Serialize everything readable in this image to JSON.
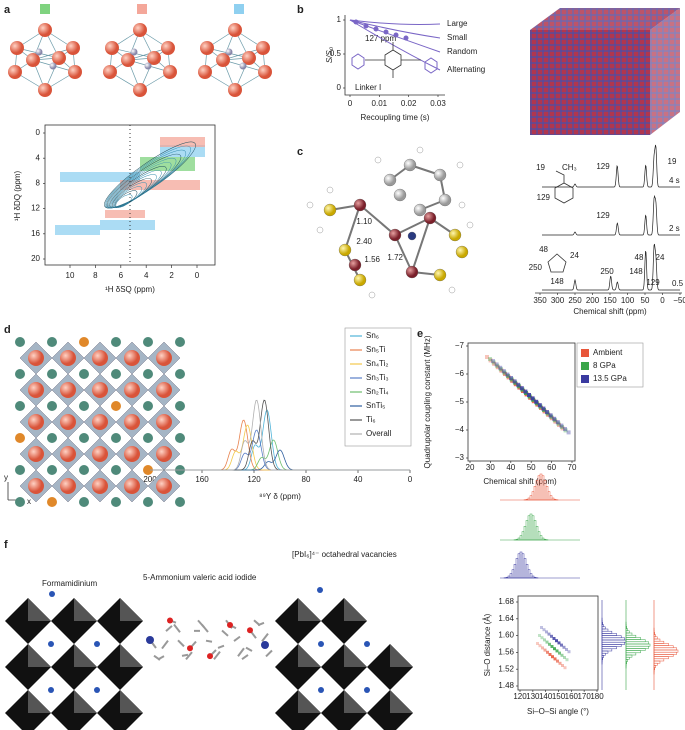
{
  "panels": {
    "a": {
      "label": "a",
      "y_label": "¹H δDQ (ppm)",
      "x_label": "¹H δSQ (ppm)",
      "yticks": [
        "0",
        "4",
        "8",
        "12",
        "16",
        "20"
      ],
      "xticks": [
        "10",
        "8",
        "6",
        "4",
        "2",
        "0"
      ],
      "marker_colors": [
        "#7fd37f",
        "#f4a79a",
        "#8fd0f0"
      ]
    },
    "b": {
      "label": "b",
      "y_label": "S/S₀",
      "yticks": [
        "1",
        "0.5",
        "0"
      ],
      "xticks": [
        "0",
        "0.01",
        "0.02",
        "0.03"
      ],
      "x_label": "Recoupling time (s)",
      "annotation": "127 ppm",
      "linker": "Linker I",
      "curves": [
        "Large",
        "Small",
        "Random",
        "Alternating"
      ],
      "color": "#7a66c6"
    },
    "c": {
      "label": "c",
      "bond_lengths": [
        "1.10",
        "2.40",
        "1.56",
        "1.72"
      ],
      "toluene": {
        "formula": "CH₃",
        "shifts": [
          "19",
          "129"
        ]
      },
      "cyclopentene": [
        "48",
        "24",
        "250",
        "148"
      ],
      "spectra": [
        {
          "peaks": [
            "129",
            "19"
          ],
          "time": "4 s"
        },
        {
          "peaks": [
            "129"
          ],
          "time": "2 s"
        },
        {
          "peaks": [
            "48",
            "24",
            "250",
            "148",
            "129"
          ],
          "time": "0.5 s"
        }
      ],
      "xticks": [
        "350",
        "300",
        "250",
        "200",
        "150",
        "100",
        "50",
        "0",
        "−50"
      ],
      "x_label": "Chemical shift (ppm)"
    },
    "d": {
      "label": "d",
      "axes": [
        "y",
        "x"
      ],
      "legend": [
        {
          "name": "Sn₆",
          "color": "#4fb3d9"
        },
        {
          "name": "Sn₅Ti",
          "color": "#e8834f"
        },
        {
          "name": "Sn₄Ti₂",
          "color": "#f2c94c"
        },
        {
          "name": "Sn₃Ti₃",
          "color": "#5b7fc7"
        },
        {
          "name": "Sn₂Ti₄",
          "color": "#6fbf6f"
        },
        {
          "name": "SnTi₅",
          "color": "#2f5f9f"
        },
        {
          "name": "Ti₆",
          "color": "#555555"
        },
        {
          "name": "Overall",
          "color": "#b0b0b0"
        }
      ],
      "xticks": [
        "200",
        "160",
        "120",
        "80",
        "40",
        "0"
      ],
      "x_label": "⁸⁹Y δ (ppm)"
    },
    "e": {
      "label": "e",
      "y_label": "Quadrupolar coupling constant (MHz)",
      "yticks": [
        "−7",
        "−6",
        "−5",
        "−4",
        "−3"
      ],
      "xticks": [
        "20",
        "30",
        "40",
        "50",
        "60",
        "70"
      ],
      "x_label": "Chemical shift (ppm)",
      "legend": [
        {
          "name": "Ambient",
          "color": "#e8563a"
        },
        {
          "name": "8 GPa",
          "color": "#3aa64a"
        },
        {
          "name": "13.5 GPa",
          "color": "#3a3aa0"
        }
      ]
    },
    "f": {
      "label": "f",
      "annotations": [
        "Formamidinium",
        "5-Ammonium valeric acid iodide",
        "[PbI₆]⁴⁻ octahedral vacancies"
      ],
      "y_label": "Si–O distance (Å)",
      "yticks": [
        "1.68",
        "1.64",
        "1.60",
        "1.56",
        "1.52",
        "1.48"
      ],
      "xticks": [
        "120",
        "130",
        "140",
        "150",
        "160",
        "170",
        "180"
      ],
      "x_label": "Si–O–Si angle (°)"
    }
  }
}
